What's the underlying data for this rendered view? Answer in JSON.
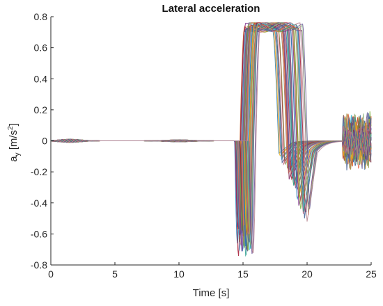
{
  "chart_data": {
    "type": "line",
    "title": "Lateral acceleration",
    "xlabel": "Time [s]",
    "ylabel": "a_y [m/s^2]",
    "ylabel_parts": {
      "main": "a",
      "sub": "y",
      "units": " [m/s",
      "sup": "2",
      "close": "]"
    },
    "xlim": [
      0,
      25
    ],
    "ylim": [
      -0.8,
      0.8
    ],
    "x_ticks": [
      0,
      5,
      10,
      15,
      20,
      25
    ],
    "y_ticks": [
      0.8,
      0.6,
      0.4,
      0.2,
      0,
      -0.2,
      -0.4,
      -0.6,
      -0.8
    ],
    "x_tick_labels": [
      "0",
      "5",
      "10",
      "15",
      "20",
      "25"
    ],
    "y_tick_labels": [
      "0.8",
      "0.6",
      "0.4",
      "0.2",
      "0",
      "-0.2",
      "-0.4",
      "-0.6",
      "-0.8"
    ],
    "grid": false,
    "legend": "none",
    "series_description": "many overlapping simulation runs; near zero until ~14.5 s, dip to ~-0.75, rise to ~0.75 plateau ~15.5-18.5 s, dip again ~-0.6 around 18.5-19.5 s, settle to 0 by ~21 s, small oscillations ~23-25 s",
    "series_count": 48,
    "key_points": [
      {
        "x": 0,
        "y": 0
      },
      {
        "x": 14.4,
        "y": 0
      },
      {
        "x": 15.0,
        "y": -0.75
      },
      {
        "x": 15.7,
        "y": 0.74
      },
      {
        "x": 18.0,
        "y": 0.74
      },
      {
        "x": 18.8,
        "y": -0.6
      },
      {
        "x": 19.6,
        "y": -0.1
      },
      {
        "x": 21.0,
        "y": 0
      },
      {
        "x": 23.0,
        "y": 0
      },
      {
        "x": 23.8,
        "y": 0.2
      },
      {
        "x": 24.4,
        "y": -0.15
      },
      {
        "x": 25.0,
        "y": 0.1
      }
    ],
    "colors": [
      "#1f77b4",
      "#d95319",
      "#edb120",
      "#7e2f8e",
      "#77ac30",
      "#4dbeee",
      "#a2142f",
      "#3b5b92",
      "#8c8c3a",
      "#c06c84",
      "#2a9d8f",
      "#e76f51",
      "#6a4c93",
      "#8ab17d",
      "#5e548e",
      "#b5838d"
    ]
  }
}
